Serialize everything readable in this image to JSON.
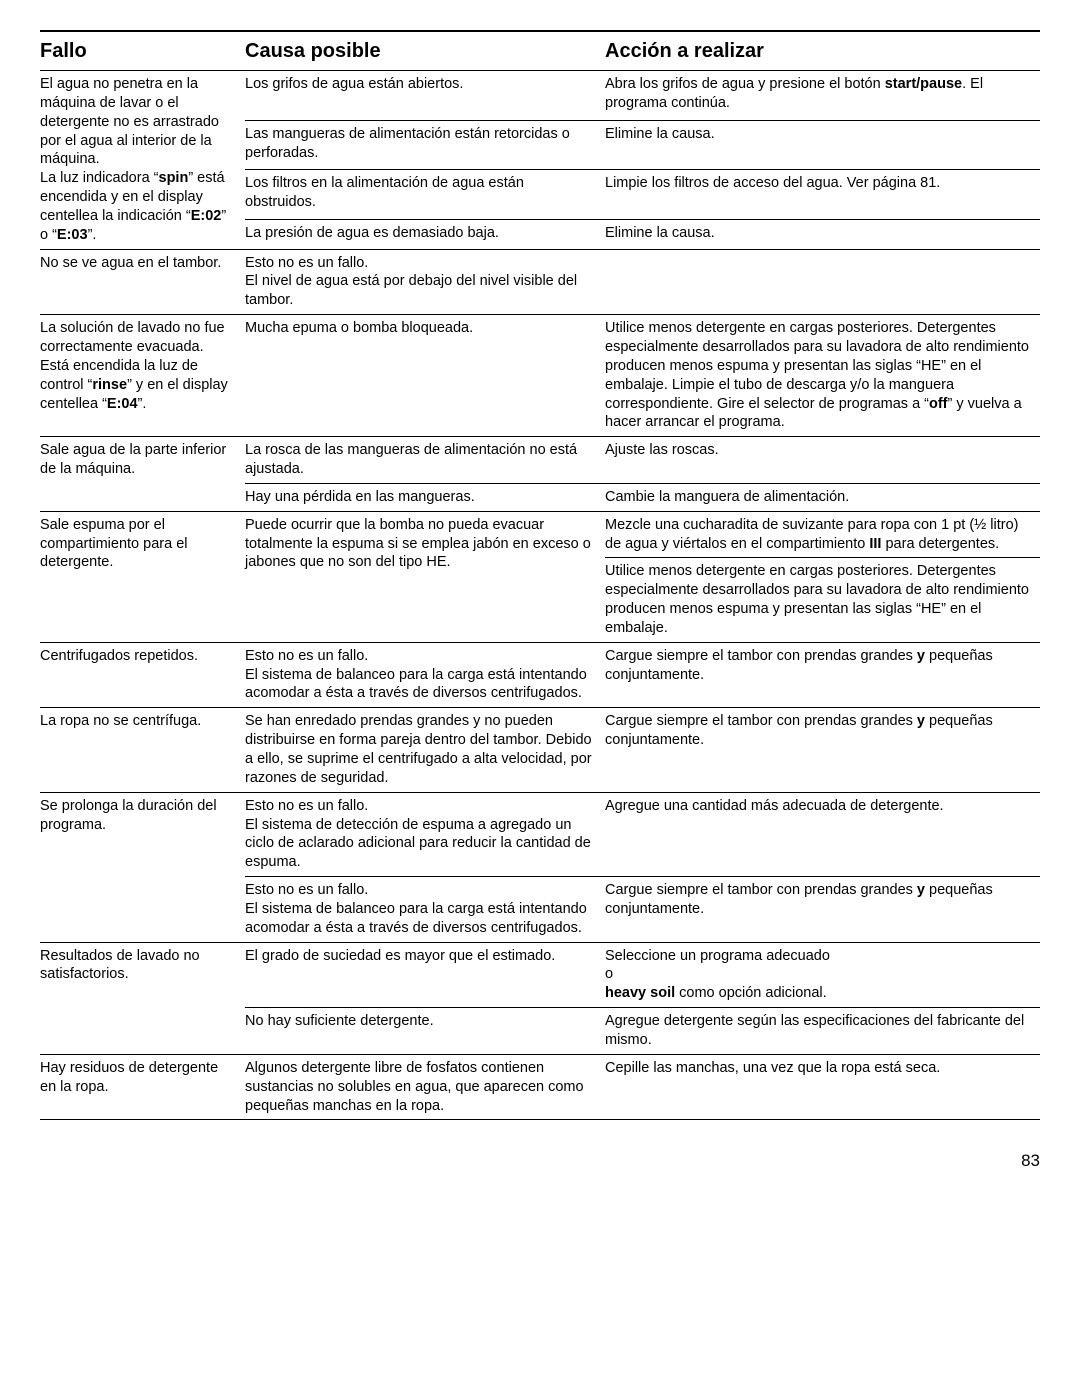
{
  "headers": {
    "fallo": "Fallo",
    "causa": "Causa posible",
    "accion": "Acción a realizar"
  },
  "rows": [
    {
      "fallo": {
        "segments": [
          {
            "t": "El agua no penetra en la máquina de lavar o el detergente no es arrastrado por el agua al interior de la máquina.\nLa luz indicadora “"
          },
          {
            "t": "spin",
            "b": true
          },
          {
            "t": "” está encendida y en el display centellea la indicación “"
          },
          {
            "t": "E:02",
            "b": true
          },
          {
            "t": "” o “"
          },
          {
            "t": "E:03",
            "b": true
          },
          {
            "t": "”."
          }
        ]
      },
      "fallo_rowspan": 4,
      "causa": {
        "segments": [
          {
            "t": "Los grifos de agua están abiertos."
          }
        ]
      },
      "accion": {
        "segments": [
          {
            "t": "Abra los grifos de agua y presione el botón "
          },
          {
            "t": "start/pause",
            "b": true
          },
          {
            "t": ". El programa continúa."
          }
        ]
      }
    },
    {
      "causa": {
        "segments": [
          {
            "t": "Las mangueras de alimentación están retorcidas o perforadas."
          }
        ]
      },
      "accion": {
        "segments": [
          {
            "t": "Elimine la causa."
          }
        ]
      }
    },
    {
      "causa": {
        "segments": [
          {
            "t": "Los filtros en la alimentación de agua están obstruidos."
          }
        ]
      },
      "accion": {
        "segments": [
          {
            "t": "Limpie los filtros de acceso del agua. Ver página 81."
          }
        ]
      }
    },
    {
      "causa": {
        "segments": [
          {
            "t": "La presión de agua es demasiado baja."
          }
        ]
      },
      "accion": {
        "segments": [
          {
            "t": "Elimine la causa."
          }
        ]
      }
    },
    {
      "fallo": {
        "segments": [
          {
            "t": "No se ve agua en el tambor."
          }
        ]
      },
      "causa": {
        "segments": [
          {
            "t": "Esto no es un fallo.\nEl nivel de agua está por debajo del nivel visible del tambor."
          }
        ]
      },
      "accion": {
        "segments": []
      }
    },
    {
      "fallo": {
        "segments": [
          {
            "t": "La solución de lavado no fue correctamente evacuada.\nEstá encendida la luz de control “"
          },
          {
            "t": "rinse",
            "b": true
          },
          {
            "t": "” y en el display centellea “"
          },
          {
            "t": "E:04",
            "b": true
          },
          {
            "t": "”."
          }
        ]
      },
      "causa": {
        "segments": [
          {
            "t": "Mucha epuma o bomba bloqueada."
          }
        ]
      },
      "accion": {
        "segments": [
          {
            "t": "Utilice menos detergente en cargas posteriores. Detergentes especialmente desarrollados para su lavadora de alto rendimiento producen menos espuma y presentan las siglas “HE” en el embalaje. Limpie el tubo de descarga y/o la manguera correspondiente. Gire el selector de programas a “"
          },
          {
            "t": "off",
            "b": true
          },
          {
            "t": "” y vuelva a hacer arrancar el programa."
          }
        ]
      }
    },
    {
      "fallo": {
        "segments": [
          {
            "t": "Sale agua de la parte inferior de la máquina."
          }
        ]
      },
      "fallo_rowspan": 2,
      "causa": {
        "segments": [
          {
            "t": "La rosca de las mangueras de alimentación no está ajustada."
          }
        ]
      },
      "accion": {
        "segments": [
          {
            "t": "Ajuste las roscas."
          }
        ]
      }
    },
    {
      "causa": {
        "segments": [
          {
            "t": "Hay una pérdida en las mangueras."
          }
        ]
      },
      "accion": {
        "segments": [
          {
            "t": "Cambie la manguera de alimentación."
          }
        ]
      }
    },
    {
      "fallo": {
        "segments": [
          {
            "t": "Sale espuma por el compartimiento para el detergente."
          }
        ]
      },
      "fallo_rowspan": 2,
      "causa": {
        "segments": [
          {
            "t": "Puede ocurrir que la bomba no pueda evacuar totalmente la espuma si se emplea jabón en exceso o jabones que no son del tipo HE."
          }
        ]
      },
      "causa_rowspan": 2,
      "accion": {
        "segments": [
          {
            "t": "Mezcle una cucharadita de suvizante para ropa con 1 pt (½ litro) de agua y viértalos en el compartimiento "
          },
          {
            "t": "III",
            "b": true
          },
          {
            "t": " para detergentes."
          }
        ]
      }
    },
    {
      "accion": {
        "segments": [
          {
            "t": "Utilice menos detergente en cargas posteriores. Detergentes especialmente desarrollados para su lavadora de alto rendimiento producen menos espuma y presentan las siglas “HE” en el embalaje."
          }
        ]
      }
    },
    {
      "fallo": {
        "segments": [
          {
            "t": "Centrifugados repetidos."
          }
        ]
      },
      "causa": {
        "segments": [
          {
            "t": "Esto no es un fallo.\nEl sistema de balanceo para la carga está intentando acomodar a ésta a través de diversos centrifugados."
          }
        ]
      },
      "accion": {
        "segments": [
          {
            "t": "Cargue siempre el tambor con prendas grandes "
          },
          {
            "t": "y",
            "b": true
          },
          {
            "t": " pequeñas conjuntamente."
          }
        ]
      }
    },
    {
      "fallo": {
        "segments": [
          {
            "t": "La ropa no se centrífuga."
          }
        ]
      },
      "causa": {
        "segments": [
          {
            "t": "Se han enredado prendas grandes y no pueden distribuirse en forma pareja dentro del tambor. Debido a ello, se suprime el centrifugado a alta velocidad, por razones de seguridad."
          }
        ]
      },
      "accion": {
        "segments": [
          {
            "t": "Cargue siempre el tambor con prendas grandes "
          },
          {
            "t": "y",
            "b": true
          },
          {
            "t": " pequeñas conjuntamente."
          }
        ]
      }
    },
    {
      "fallo": {
        "segments": [
          {
            "t": "Se prolonga la duración del programa."
          }
        ]
      },
      "fallo_rowspan": 2,
      "causa": {
        "segments": [
          {
            "t": "Esto no es un fallo.\nEl sistema de detección de espuma a agregado un ciclo de aclarado adicional para reducir la cantidad de espuma."
          }
        ]
      },
      "accion": {
        "segments": [
          {
            "t": "Agregue una cantidad más adecuada de detergente."
          }
        ]
      }
    },
    {
      "causa": {
        "segments": [
          {
            "t": "Esto no es un fallo.\nEl sistema de balanceo para la carga está intentando acomodar a ésta a través de diversos centrifugados."
          }
        ]
      },
      "accion": {
        "segments": [
          {
            "t": "Cargue siempre el tambor con prendas grandes "
          },
          {
            "t": "y",
            "b": true
          },
          {
            "t": " pequeñas conjuntamente."
          }
        ]
      }
    },
    {
      "fallo": {
        "segments": [
          {
            "t": "Resultados de lavado no satisfactorios."
          }
        ]
      },
      "fallo_rowspan": 2,
      "causa": {
        "segments": [
          {
            "t": "El grado de suciedad es mayor que el estimado."
          }
        ]
      },
      "accion": {
        "segments": [
          {
            "t": "Seleccione un programa adecuado\no\n"
          },
          {
            "t": "heavy soil",
            "b": true
          },
          {
            "t": " como opción adicional."
          }
        ]
      }
    },
    {
      "causa": {
        "segments": [
          {
            "t": "No hay suficiente detergente."
          }
        ]
      },
      "accion": {
        "segments": [
          {
            "t": "Agregue detergente según las especificaciones del fabricante del mismo."
          }
        ]
      }
    },
    {
      "fallo": {
        "segments": [
          {
            "t": "Hay residuos de detergente en la ropa."
          }
        ]
      },
      "causa": {
        "segments": [
          {
            "t": "Algunos detergente libre de fosfatos contienen sustancias no solubles en agua, que aparecen como pequeñas manchas en la ropa."
          }
        ]
      },
      "accion": {
        "segments": [
          {
            "t": "Cepille las manchas, una vez que la ropa está seca."
          }
        ]
      }
    }
  ],
  "page_number": "83"
}
